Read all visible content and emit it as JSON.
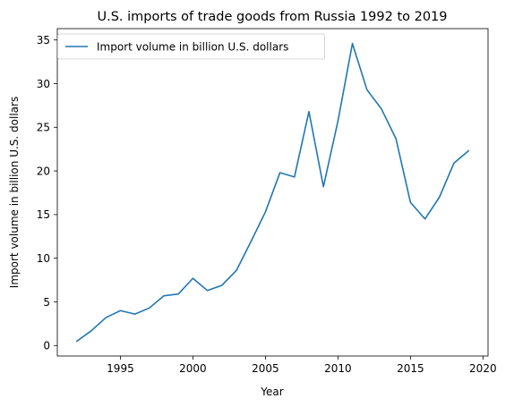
{
  "chart_data": {
    "type": "line",
    "title": "U.S. imports of trade goods from Russia 1992 to 2019",
    "xlabel": "Year",
    "ylabel": "Import volume in billion U.S. dollars",
    "xlim": [
      1990.65,
      2020.35
    ],
    "ylim": [
      -1.2,
      36.3
    ],
    "xticks": [
      1995,
      2000,
      2005,
      2010,
      2015,
      2020
    ],
    "yticks": [
      0,
      5,
      10,
      15,
      20,
      25,
      30,
      35
    ],
    "grid": false,
    "legend_position": "top-left",
    "series": [
      {
        "name": "Import volume in billion U.S. dollars",
        "color": "#1f77b4",
        "x": [
          1992,
          1993,
          1994,
          1995,
          1996,
          1997,
          1998,
          1999,
          2000,
          2001,
          2002,
          2003,
          2004,
          2005,
          2006,
          2007,
          2008,
          2009,
          2010,
          2011,
          2012,
          2013,
          2014,
          2015,
          2016,
          2017,
          2018,
          2019
        ],
        "y": [
          0.5,
          1.7,
          3.2,
          4.0,
          3.6,
          4.3,
          5.7,
          5.9,
          7.7,
          6.3,
          6.9,
          8.6,
          11.9,
          15.3,
          19.8,
          19.3,
          26.8,
          18.2,
          25.7,
          34.6,
          29.3,
          27.1,
          23.7,
          16.4,
          14.5,
          17.0,
          20.9,
          22.3
        ]
      }
    ]
  }
}
